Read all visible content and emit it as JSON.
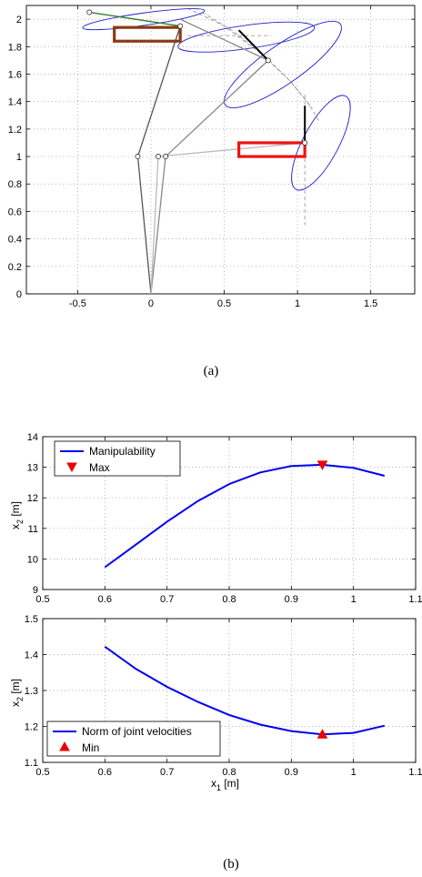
{
  "captions": [
    "(a)",
    "(b)"
  ],
  "chart_data": [
    {
      "type": "diagram-plot",
      "xlim": [
        -0.85,
        1.8
      ],
      "ylim": [
        0,
        2.1
      ],
      "xticks": [
        "-0.5",
        "0",
        "0.5",
        "1",
        "1.5"
      ],
      "xtick_values": [
        -0.5,
        0,
        0.5,
        1,
        1.5
      ],
      "yticks": [
        "0",
        "0.2",
        "0.4",
        "0.6",
        "0.8",
        "1",
        "1.2",
        "1.4",
        "1.6",
        "1.8",
        "2"
      ],
      "ytick_values": [
        0,
        0.2,
        0.4,
        0.6,
        0.8,
        1,
        1.2,
        1.4,
        1.6,
        1.8,
        2
      ],
      "grid": true,
      "arms": [
        {
          "color": "#555555",
          "points": [
            [
              0,
              0
            ],
            [
              -0.09,
              1.0
            ],
            [
              0.2,
              1.95
            ],
            [
              -0.42,
              2.05
            ]
          ]
        },
        {
          "color": "#888888",
          "points": [
            [
              0,
              0
            ],
            [
              0.1,
              1.0
            ],
            [
              0.8,
              1.7
            ],
            [
              0.2,
              2.0
            ]
          ]
        },
        {
          "color": "#bbbbbb",
          "points": [
            [
              0,
              0
            ],
            [
              0.05,
              1.0
            ],
            [
              1.05,
              1.1
            ]
          ]
        }
      ],
      "joints": [
        [
          -0.09,
          1.0
        ],
        [
          0.05,
          1.0
        ],
        [
          0.1,
          1.0
        ],
        [
          0.2,
          1.95
        ],
        [
          0.8,
          1.7
        ],
        [
          -0.42,
          2.05
        ],
        [
          1.05,
          1.1
        ]
      ],
      "boxes": [
        {
          "color": "#8b3a14",
          "x1": -0.25,
          "x2": 0.2,
          "y1": 1.84,
          "y2": 1.94
        },
        {
          "color": "#ee1111",
          "x1": 0.6,
          "x2": 1.05,
          "y1": 1.0,
          "y2": 1.1
        }
      ],
      "ellipses": [
        {
          "cx": -0.05,
          "cy": 2.0,
          "rx": 0.42,
          "ry": 0.045,
          "angle": -8
        },
        {
          "cx": 0.65,
          "cy": 1.87,
          "rx": 0.47,
          "ry": 0.085,
          "angle": -8
        },
        {
          "cx": 0.9,
          "cy": 1.67,
          "rx": 0.48,
          "ry": 0.14,
          "angle": -35
        },
        {
          "cx": 1.16,
          "cy": 1.1,
          "rx": 0.36,
          "ry": 0.13,
          "angle": -62
        }
      ],
      "dashed_paths": [
        [
          [
            0.25,
            2.08
          ],
          [
            0.5,
            1.95
          ],
          [
            0.75,
            1.75
          ],
          [
            0.95,
            1.55
          ],
          [
            1.08,
            1.38
          ],
          [
            1.15,
            1.25
          ]
        ],
        [
          [
            0.35,
            2.05
          ],
          [
            0.55,
            1.92
          ],
          [
            0.75,
            1.76
          ],
          [
            0.95,
            1.55
          ],
          [
            1.1,
            1.35
          ]
        ],
        [
          [
            1.05,
            1.45
          ],
          [
            1.05,
            0.5
          ]
        ],
        [
          [
            0.25,
            1.88
          ],
          [
            0.82,
            1.88
          ]
        ]
      ],
      "black_segments": [
        [
          [
            0.6,
            1.92
          ],
          [
            0.8,
            1.7
          ]
        ],
        [
          [
            1.05,
            1.1
          ],
          [
            1.05,
            1.37
          ]
        ]
      ],
      "green_segments": [
        [
          [
            -0.42,
            2.05
          ],
          [
            0.2,
            1.95
          ]
        ]
      ]
    },
    {
      "type": "line",
      "x": [
        0.6,
        0.65,
        0.7,
        0.75,
        0.8,
        0.85,
        0.9,
        0.95,
        1.0,
        1.05
      ],
      "series": [
        {
          "name": "Manipulability",
          "color": "#0000ee",
          "values": [
            9.73,
            10.47,
            11.22,
            11.9,
            12.45,
            12.83,
            13.04,
            13.08,
            12.98,
            12.72
          ]
        }
      ],
      "marker": {
        "name": "Max",
        "x": 0.95,
        "y": 13.08,
        "shape": "triangle-down",
        "color": "#ee0000"
      },
      "xlim": [
        0.5,
        1.1
      ],
      "ylim": [
        9,
        14
      ],
      "xticks": [
        "0.5",
        "0.6",
        "0.7",
        "0.8",
        "0.9",
        "1",
        "1.1"
      ],
      "xtick_values": [
        0.5,
        0.6,
        0.7,
        0.8,
        0.9,
        1,
        1.1
      ],
      "yticks": [
        "9",
        "10",
        "11",
        "12",
        "13",
        "14"
      ],
      "ytick_values": [
        9,
        10,
        11,
        12,
        13,
        14
      ],
      "ylabel_main": "x",
      "ylabel_sub": "2",
      "ylabel_unit": " [m]",
      "grid": true,
      "legend_position": "top-left"
    },
    {
      "type": "line",
      "x": [
        0.6,
        0.65,
        0.7,
        0.75,
        0.8,
        0.85,
        0.9,
        0.95,
        1.0,
        1.05
      ],
      "series": [
        {
          "name": "Norm of joint velocities",
          "color": "#0000ee",
          "values": [
            1.422,
            1.36,
            1.31,
            1.268,
            1.232,
            1.205,
            1.187,
            1.178,
            1.182,
            1.202
          ]
        }
      ],
      "marker": {
        "name": "Min",
        "x": 0.95,
        "y": 1.178,
        "shape": "triangle-up",
        "color": "#ee0000"
      },
      "xlim": [
        0.5,
        1.1
      ],
      "ylim": [
        1.1,
        1.5
      ],
      "xticks": [
        "0.5",
        "0.6",
        "0.7",
        "0.8",
        "0.9",
        "1",
        "1.1"
      ],
      "xtick_values": [
        0.5,
        0.6,
        0.7,
        0.8,
        0.9,
        1,
        1.1
      ],
      "yticks": [
        "1.1",
        "1.2",
        "1.3",
        "1.4",
        "1.5"
      ],
      "ytick_values": [
        1.1,
        1.2,
        1.3,
        1.4,
        1.5
      ],
      "ylabel_main": "x",
      "ylabel_sub": "2",
      "ylabel_unit": " [m]",
      "xlabel_main": "x",
      "xlabel_sub": "1",
      "xlabel_unit": " [m]",
      "grid": true,
      "legend_position": "bottom-left"
    }
  ]
}
